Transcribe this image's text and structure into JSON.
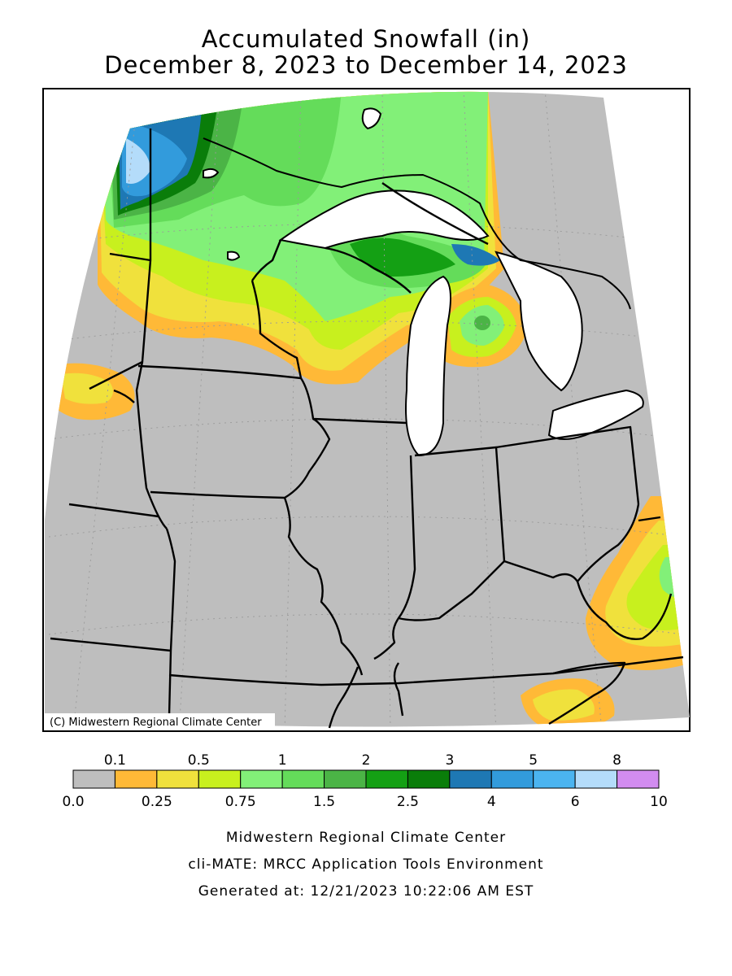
{
  "title": {
    "line1": "Accumulated Snowfall (in)",
    "line2": "December 8, 2023 to December 14, 2023"
  },
  "map": {
    "copyright": "(C) Midwestern Regional Climate Center"
  },
  "legend": {
    "upper_labels": [
      "0.1",
      "0.5",
      "1",
      "2",
      "3",
      "5",
      "8"
    ],
    "lower_labels": [
      "0.0",
      "0.25",
      "0.75",
      "1.5",
      "2.5",
      "4",
      "6",
      "10"
    ],
    "colors": [
      "#bebebe",
      "#ffb937",
      "#f0e13c",
      "#c8f01e",
      "#82f078",
      "#64dc5a",
      "#4bb446",
      "#14a014",
      "#0a7d0a",
      "#1e78b4",
      "#329bdc",
      "#4bb4f0",
      "#b4dcfa",
      "#d28cf0"
    ]
  },
  "footer": {
    "line1": "Midwestern Regional Climate Center",
    "line2": "cli-MATE: MRCC Application Tools Environment",
    "line3": "Generated at: 12/21/2023 10:22:06 AM EST"
  }
}
